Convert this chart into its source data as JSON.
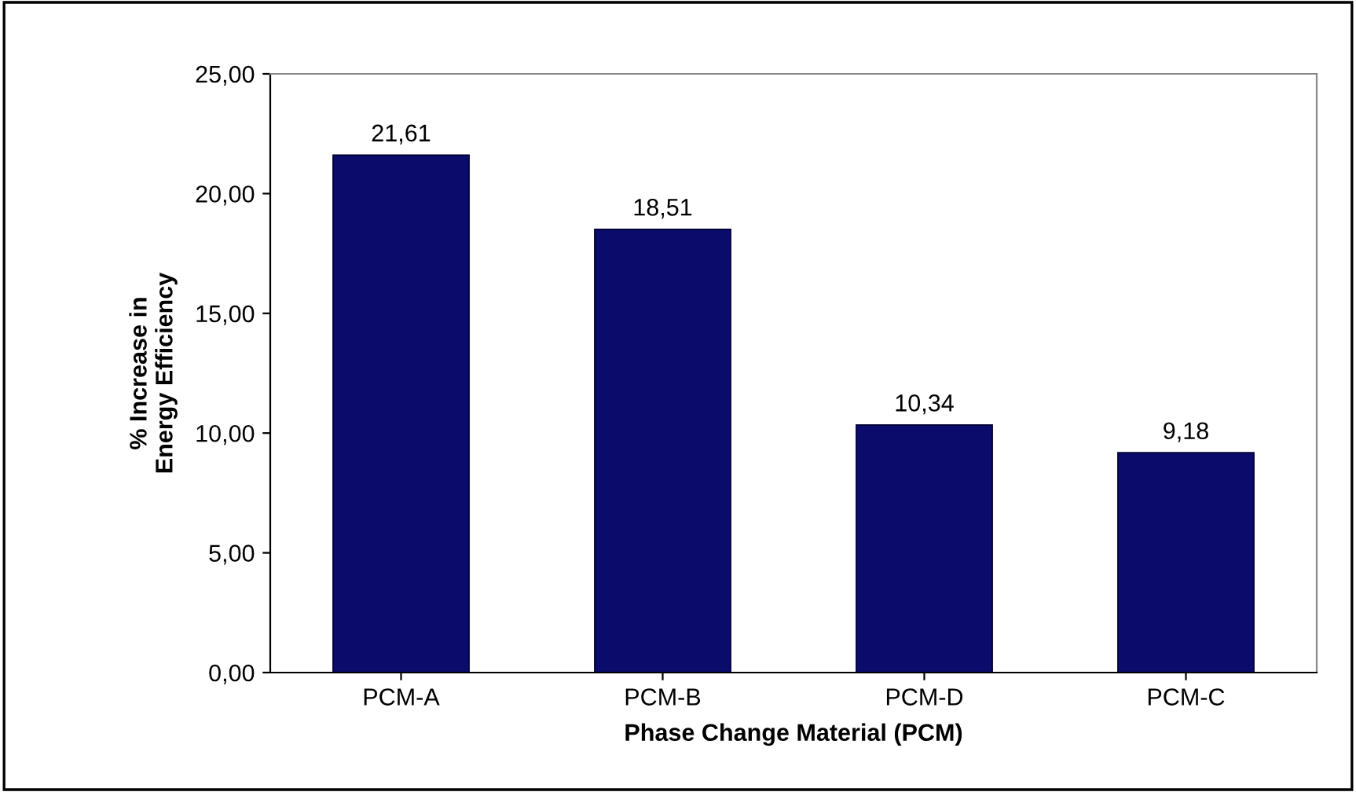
{
  "chart_data": {
    "type": "bar",
    "xlabel": "Phase Change Material (PCM)",
    "ylabel": "% Increase in\nEnergy Efficiency",
    "categories": [
      "PCM-A",
      "PCM-B",
      "PCM-D",
      "PCM-C"
    ],
    "values": [
      21.61,
      18.51,
      10.34,
      9.18
    ],
    "value_labels": [
      "21,61",
      "18,51",
      "10,34",
      "9,18"
    ],
    "color": "#0b0b6b",
    "ylim": [
      0,
      25
    ],
    "yticks": [
      {
        "value": 0,
        "label": "0,00"
      },
      {
        "value": 5,
        "label": "5,00"
      },
      {
        "value": 10,
        "label": "10,00"
      },
      {
        "value": 15,
        "label": "15,00"
      },
      {
        "value": 20,
        "label": "20,00"
      },
      {
        "value": 25,
        "label": "25,00"
      }
    ],
    "grid": false,
    "legend": false
  }
}
